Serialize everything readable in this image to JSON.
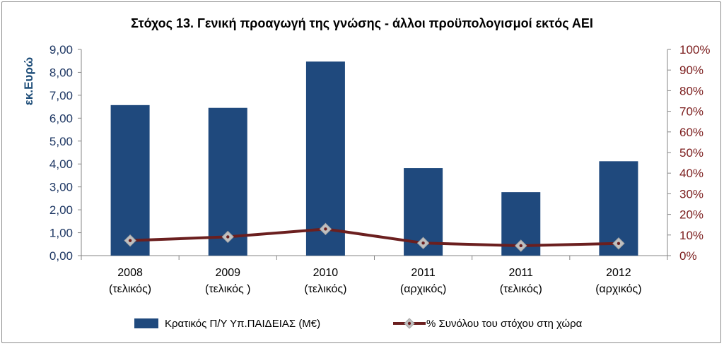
{
  "chart_data": {
    "type": "bar",
    "title": "Στόχος 13. Γενική προαγωγή της γνώσης - άλλοι προϋπολογισμοί εκτός ΑΕΙ",
    "ylabel": "εκ.Ευρώ",
    "ylim": [
      0,
      9
    ],
    "y_ticks": [
      "0,00",
      "1,00",
      "2,00",
      "3,00",
      "4,00",
      "5,00",
      "6,00",
      "7,00",
      "8,00",
      "9,00"
    ],
    "y2lim": [
      0,
      100
    ],
    "y2_ticks": [
      "0%",
      "10%",
      "20%",
      "30%",
      "40%",
      "50%",
      "60%",
      "70%",
      "80%",
      "90%",
      "100%"
    ],
    "categories": [
      [
        "2008",
        "(τελικός)"
      ],
      [
        "2009",
        "(τελικός )"
      ],
      [
        "2010",
        "(τελικός)"
      ],
      [
        "2011",
        "(αρχικός)"
      ],
      [
        "2011",
        "(τελικός)"
      ],
      [
        "2012",
        "(αρχικός)"
      ]
    ],
    "series": [
      {
        "name": "Κρατικός Π/Υ Υπ.ΠΑΙΔΕΙΑΣ (Μ€)",
        "type": "bar",
        "axis": "left",
        "color": "#1f497d",
        "values": [
          6.57,
          6.45,
          8.47,
          3.82,
          2.77,
          4.12
        ]
      },
      {
        "name": "% Συνόλου του στόχου στη χώρα",
        "type": "line",
        "axis": "right",
        "color": "#6b1f1f",
        "marker": "diamond",
        "marker_color": "#c0c0c0",
        "values": [
          7.3,
          9.1,
          12.9,
          6.1,
          4.8,
          5.9
        ]
      }
    ],
    "grid": false,
    "legend_position": "bottom"
  }
}
